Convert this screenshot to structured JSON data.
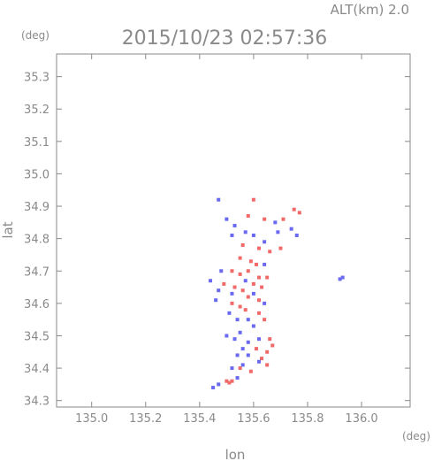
{
  "chart_data": {
    "type": "scatter",
    "title": "2015/10/23 02:57:36",
    "altitude_label": "ALT(km)  2.0",
    "xlabel": "lon",
    "ylabel": "lat",
    "x_unit": "(deg)",
    "y_unit": "(deg)",
    "xlim": [
      134.87,
      136.18
    ],
    "ylim": [
      34.28,
      35.37
    ],
    "xticks": [
      135.0,
      135.2,
      135.4,
      135.6,
      135.8,
      136.0
    ],
    "xtick_labels": [
      "135.0",
      "135.2",
      "135.4",
      "135.6",
      "135.8",
      "136.0"
    ],
    "yticks": [
      34.3,
      34.4,
      34.5,
      34.6,
      34.7,
      34.8,
      34.9,
      35.0,
      35.1,
      35.2,
      35.3
    ],
    "ytick_labels": [
      "34.3",
      "34.4",
      "34.5",
      "34.6",
      "34.7",
      "34.8",
      "34.9",
      "35.0",
      "35.1",
      "35.2",
      "35.3"
    ],
    "grid": false,
    "colors": {
      "positive": "#f06a6a",
      "negative": "#6a6af0",
      "axis": "#8a8a8a"
    },
    "series": [
      {
        "name": "positive",
        "values": [
          [
            135.6,
            34.92
          ],
          [
            135.58,
            34.87
          ],
          [
            135.64,
            34.86
          ],
          [
            135.71,
            34.86
          ],
          [
            135.75,
            34.89
          ],
          [
            135.77,
            34.88
          ],
          [
            135.56,
            34.78
          ],
          [
            135.62,
            34.77
          ],
          [
            135.66,
            34.76
          ],
          [
            135.7,
            34.77
          ],
          [
            135.55,
            34.74
          ],
          [
            135.59,
            34.73
          ],
          [
            135.61,
            34.72
          ],
          [
            135.52,
            34.7
          ],
          [
            135.55,
            34.69
          ],
          [
            135.58,
            34.7
          ],
          [
            135.62,
            34.68
          ],
          [
            135.65,
            34.68
          ],
          [
            135.49,
            34.66
          ],
          [
            135.53,
            34.65
          ],
          [
            135.6,
            34.66
          ],
          [
            135.63,
            34.65
          ],
          [
            135.56,
            34.64
          ],
          [
            135.58,
            34.62
          ],
          [
            135.62,
            34.61
          ],
          [
            135.52,
            34.6
          ],
          [
            135.55,
            34.59
          ],
          [
            135.57,
            34.58
          ],
          [
            135.62,
            34.57
          ],
          [
            135.64,
            34.55
          ],
          [
            135.66,
            34.49
          ],
          [
            135.67,
            34.47
          ],
          [
            135.65,
            34.45
          ],
          [
            135.61,
            34.46
          ],
          [
            135.63,
            34.43
          ],
          [
            135.65,
            34.41
          ],
          [
            135.55,
            34.4
          ],
          [
            135.59,
            34.39
          ],
          [
            135.52,
            34.36
          ],
          [
            135.5,
            34.36
          ],
          [
            135.51,
            34.355
          ]
        ]
      },
      {
        "name": "negative",
        "values": [
          [
            135.47,
            34.92
          ],
          [
            135.5,
            34.86
          ],
          [
            135.53,
            34.84
          ],
          [
            135.52,
            34.81
          ],
          [
            135.57,
            34.82
          ],
          [
            135.6,
            34.81
          ],
          [
            135.68,
            34.85
          ],
          [
            135.69,
            34.82
          ],
          [
            135.74,
            34.83
          ],
          [
            135.76,
            34.81
          ],
          [
            135.64,
            34.79
          ],
          [
            135.48,
            34.7
          ],
          [
            135.44,
            34.67
          ],
          [
            135.47,
            34.64
          ],
          [
            135.46,
            34.61
          ],
          [
            135.52,
            34.63
          ],
          [
            135.57,
            34.67
          ],
          [
            135.64,
            34.72
          ],
          [
            135.6,
            34.63
          ],
          [
            135.64,
            34.6
          ],
          [
            135.51,
            34.57
          ],
          [
            135.54,
            34.55
          ],
          [
            135.58,
            34.55
          ],
          [
            135.6,
            34.53
          ],
          [
            135.55,
            34.51
          ],
          [
            135.5,
            34.5
          ],
          [
            135.53,
            34.49
          ],
          [
            135.58,
            34.48
          ],
          [
            135.62,
            34.49
          ],
          [
            135.56,
            34.46
          ],
          [
            135.54,
            34.44
          ],
          [
            135.58,
            34.44
          ],
          [
            135.62,
            34.42
          ],
          [
            135.56,
            34.41
          ],
          [
            135.52,
            34.4
          ],
          [
            135.54,
            34.37
          ],
          [
            135.47,
            34.35
          ],
          [
            135.45,
            34.34
          ],
          [
            135.93,
            34.68
          ],
          [
            135.92,
            34.675
          ]
        ]
      }
    ]
  }
}
